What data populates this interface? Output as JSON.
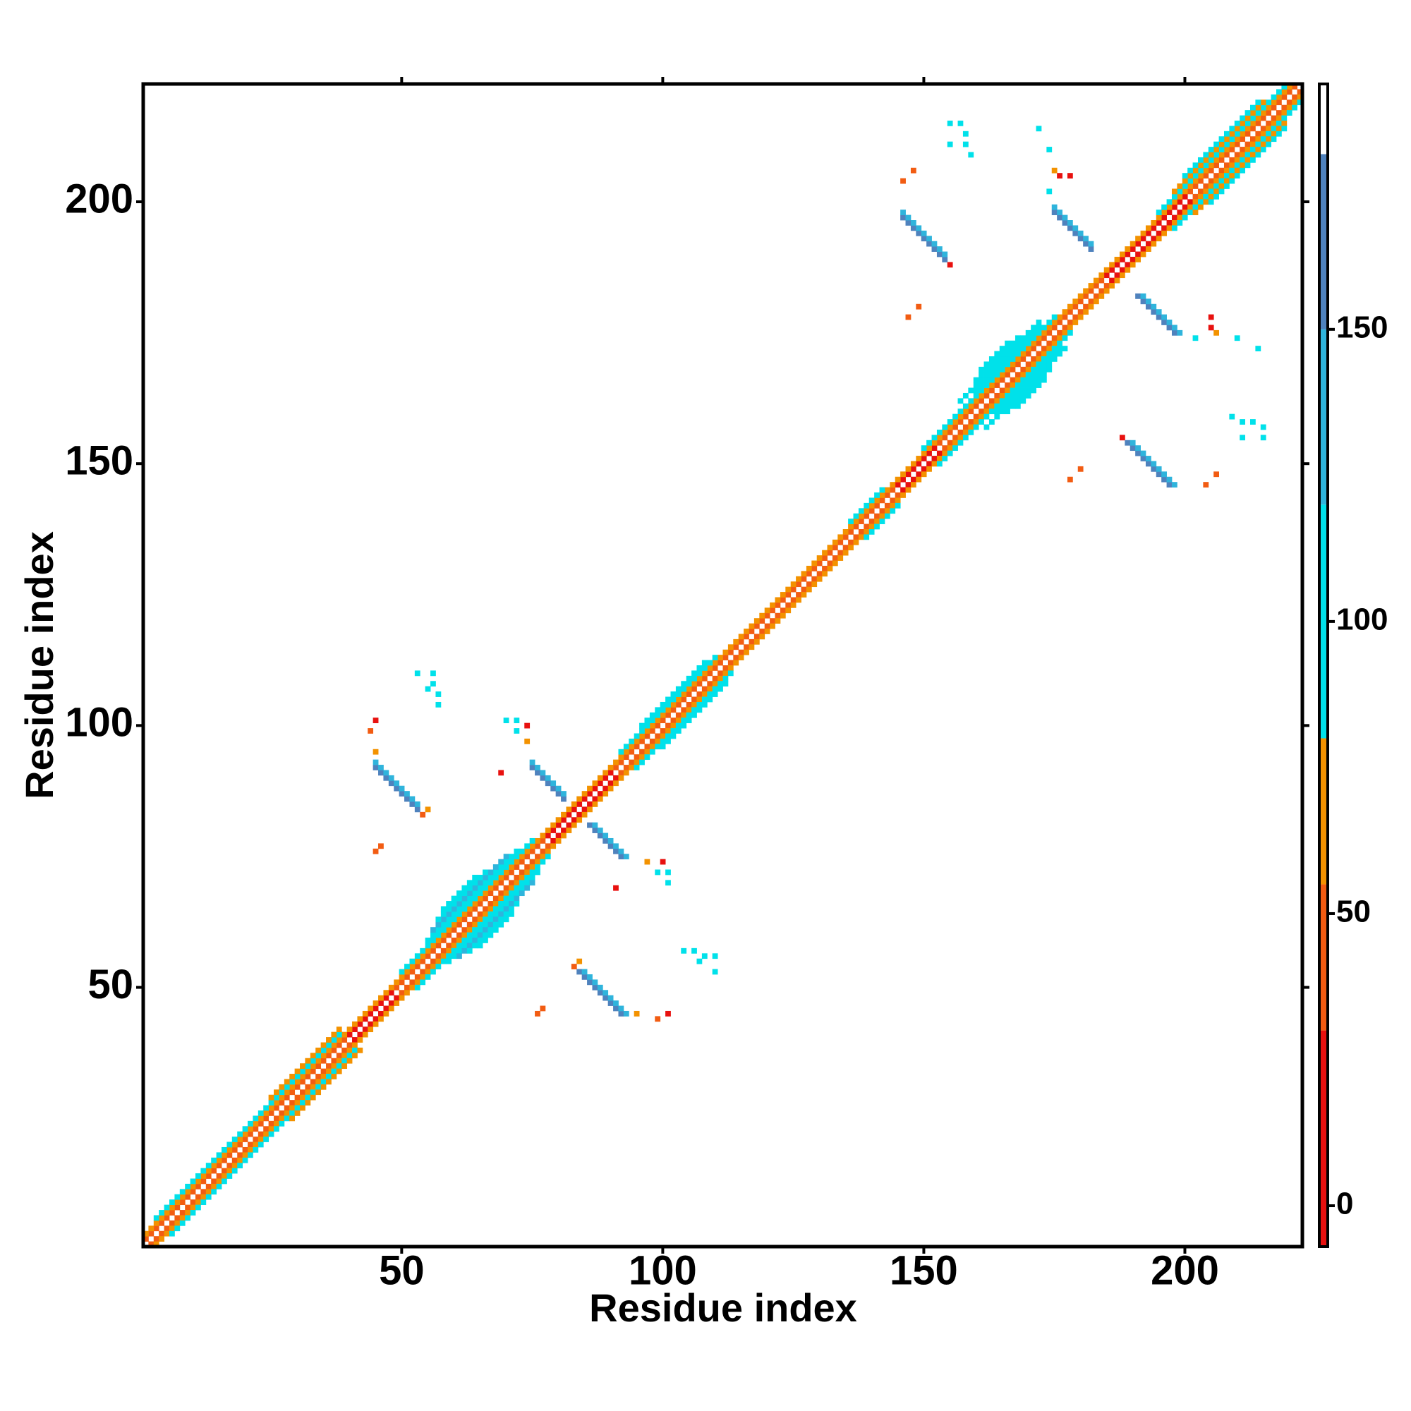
{
  "chart_data": {
    "type": "heatmap",
    "xlabel": "Residue index",
    "ylabel": "Residue index",
    "xlim": [
      0.5,
      222.5
    ],
    "ylim": [
      0.5,
      222.5
    ],
    "xticks": [
      50,
      100,
      150,
      200
    ],
    "yticks": [
      50,
      100,
      150,
      200
    ],
    "symmetric": true,
    "colorbar": {
      "lim": [
        -7,
        192
      ],
      "ticks": [
        0,
        50,
        100,
        150
      ],
      "bounds": [
        -7,
        30,
        55,
        80,
        120,
        150,
        180,
        192
      ],
      "colors": [
        "#e8110f",
        "#f25c12",
        "#f39200",
        "#00e1ea",
        "#2fb4dc",
        "#4f82bd",
        "#ffffff"
      ]
    },
    "segments": [
      {
        "x": [
          1,
          39
        ],
        "y": [
          2,
          40
        ],
        "value": 40
      },
      {
        "x": [
          40,
          48
        ],
        "y": [
          41,
          49
        ],
        "value": 10
      },
      {
        "x": [
          49,
          77
        ],
        "y": [
          50,
          78
        ],
        "value": 40
      },
      {
        "x": [
          78,
          90
        ],
        "y": [
          79,
          91
        ],
        "value": 10
      },
      {
        "x": [
          91,
          144
        ],
        "y": [
          92,
          145
        ],
        "value": 40
      },
      {
        "x": [
          145,
          152
        ],
        "y": [
          146,
          153
        ],
        "value": 10
      },
      {
        "x": [
          153,
          184
        ],
        "y": [
          154,
          185
        ],
        "value": 40
      },
      {
        "x": [
          185,
          200
        ],
        "y": [
          186,
          201
        ],
        "value": 10
      },
      {
        "x": [
          201,
          221
        ],
        "y": [
          202,
          222
        ],
        "value": 40
      },
      {
        "x": [
          1,
          220
        ],
        "y": [
          3,
          222
        ],
        "value": 65
      },
      {
        "x": [
          3,
          38
        ],
        "y": [
          6,
          41
        ],
        "value": 100
      },
      {
        "x": [
          50,
          75
        ],
        "y": [
          53,
          78
        ],
        "value": 100
      },
      {
        "x": [
          92,
          110
        ],
        "y": [
          95,
          113
        ],
        "value": 100
      },
      {
        "x": [
          136,
          142
        ],
        "y": [
          139,
          145
        ],
        "value": 100
      },
      {
        "x": [
          150,
          175
        ],
        "y": [
          153,
          178
        ],
        "value": 100
      },
      {
        "x": [
          195,
          219
        ],
        "y": [
          198,
          222
        ],
        "value": 100
      },
      {
        "x": [
          25,
          38
        ],
        "y": [
          29,
          42
        ],
        "value": 60
      },
      {
        "x": [
          55,
          72
        ],
        "y": [
          59,
          76
        ],
        "value": 100
      },
      {
        "x": [
          96,
          108
        ],
        "y": [
          100,
          112
        ],
        "value": 110
      },
      {
        "x": [
          160,
          172
        ],
        "y": [
          164,
          176
        ],
        "value": 100
      },
      {
        "x": [
          198,
          215
        ],
        "y": [
          202,
          219
        ],
        "value": 60
      },
      {
        "x": [
          56,
          70
        ],
        "y": [
          61,
          75
        ],
        "value": 130
      },
      {
        "x": [
          157,
          172
        ],
        "y": [
          162,
          177
        ],
        "value": 110
      },
      {
        "x": [
          200,
          214
        ],
        "y": [
          205,
          219
        ],
        "value": 100
      },
      {
        "x": [
          57,
          66
        ],
        "y": [
          63,
          72
        ],
        "value": 100
      },
      {
        "x": [
          160,
          168
        ],
        "y": [
          166,
          174
        ],
        "value": 100
      },
      {
        "x": [
          58,
          64
        ],
        "y": [
          65,
          71
        ],
        "value": 110
      },
      {
        "x": [
          161,
          166
        ],
        "y": [
          168,
          173
        ],
        "value": 110
      },
      {
        "x": [
          84,
          92
        ],
        "y": [
          53,
          45
        ],
        "value": 160
      },
      {
        "x": [
          85,
          93
        ],
        "y": [
          53,
          45
        ],
        "value": 130
      },
      {
        "x": [
          86,
          92
        ],
        "y": [
          81,
          75
        ],
        "value": 160
      },
      {
        "x": [
          87,
          93
        ],
        "y": [
          81,
          75
        ],
        "value": 130
      },
      {
        "x": [
          189,
          197
        ],
        "y": [
          154,
          146
        ],
        "value": 160
      },
      {
        "x": [
          190,
          198
        ],
        "y": [
          154,
          146
        ],
        "value": 130
      },
      {
        "x": [
          191,
          198
        ],
        "y": [
          182,
          175
        ],
        "value": 160
      },
      {
        "x": [
          192,
          199
        ],
        "y": [
          182,
          175
        ],
        "value": 130
      }
    ],
    "cells": [
      {
        "x": 83,
        "y": 54,
        "value": 40
      },
      {
        "x": 84,
        "y": 55,
        "value": 60
      },
      {
        "x": 95,
        "y": 45,
        "value": 60
      },
      {
        "x": 99,
        "y": 44,
        "value": 55
      },
      {
        "x": 101,
        "y": 45,
        "value": 20
      },
      {
        "x": 76,
        "y": 45,
        "value": 50
      },
      {
        "x": 77,
        "y": 46,
        "value": 50
      },
      {
        "x": 97,
        "y": 74,
        "value": 60
      },
      {
        "x": 100,
        "y": 74,
        "value": 20
      },
      {
        "x": 99,
        "y": 72,
        "value": 100
      },
      {
        "x": 101,
        "y": 72,
        "value": 100
      },
      {
        "x": 101,
        "y": 70,
        "value": 100
      },
      {
        "x": 104,
        "y": 57,
        "value": 120
      },
      {
        "x": 106,
        "y": 57,
        "value": 100
      },
      {
        "x": 108,
        "y": 56,
        "value": 100
      },
      {
        "x": 110,
        "y": 56,
        "value": 100
      },
      {
        "x": 107,
        "y": 55,
        "value": 120
      },
      {
        "x": 110,
        "y": 53,
        "value": 120
      },
      {
        "x": 91,
        "y": 69,
        "value": 20
      },
      {
        "x": 188,
        "y": 155,
        "value": 10
      },
      {
        "x": 204,
        "y": 146,
        "value": 50
      },
      {
        "x": 206,
        "y": 148,
        "value": 50
      },
      {
        "x": 178,
        "y": 147,
        "value": 50
      },
      {
        "x": 180,
        "y": 149,
        "value": 50
      },
      {
        "x": 205,
        "y": 176,
        "value": 20
      },
      {
        "x": 206,
        "y": 175,
        "value": 60
      },
      {
        "x": 210,
        "y": 174,
        "value": 100
      },
      {
        "x": 214,
        "y": 172,
        "value": 120
      },
      {
        "x": 202,
        "y": 174,
        "value": 100
      },
      {
        "x": 205,
        "y": 178,
        "value": 15
      },
      {
        "x": 209,
        "y": 159,
        "value": 100
      },
      {
        "x": 211,
        "y": 158,
        "value": 120
      },
      {
        "x": 213,
        "y": 158,
        "value": 100
      },
      {
        "x": 215,
        "y": 157,
        "value": 100
      },
      {
        "x": 211,
        "y": 155,
        "value": 120
      },
      {
        "x": 215,
        "y": 155,
        "value": 100
      }
    ]
  }
}
